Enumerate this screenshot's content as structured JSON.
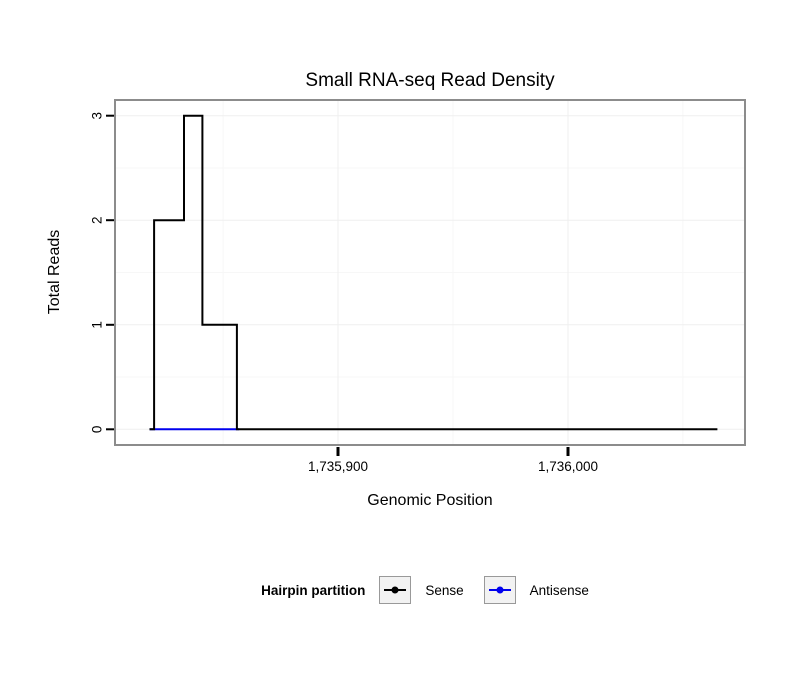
{
  "chart_data": {
    "type": "line",
    "title": "Small RNA-seq Read Density",
    "xlabel": "Genomic Position",
    "ylabel": "Total Reads",
    "legend_title": "Hairpin partition",
    "legend_position": "bottom",
    "grid": true,
    "xlim": [
      1735803,
      1736077
    ],
    "ylim": [
      -0.15,
      3.15
    ],
    "x_ticks": [
      {
        "value": 1735900,
        "label": "1,735,900"
      },
      {
        "value": 1736000,
        "label": "1,736,000"
      }
    ],
    "x_minor": [
      1735850,
      1735950,
      1736050
    ],
    "y_ticks": [
      0,
      1,
      2,
      3
    ],
    "y_minor": [
      0.5,
      1.5,
      2.5
    ],
    "series": [
      {
        "name": "Sense",
        "color": "#000000",
        "points": [
          [
            1735818,
            0
          ],
          [
            1735820,
            0
          ],
          [
            1735820,
            2
          ],
          [
            1735833,
            2
          ],
          [
            1735833,
            3
          ],
          [
            1735841,
            3
          ],
          [
            1735841,
            1
          ],
          [
            1735856,
            1
          ],
          [
            1735856,
            0
          ],
          [
            1736065,
            0
          ]
        ]
      },
      {
        "name": "Antisense",
        "color": "#0000ee",
        "points": [
          [
            1735818,
            0
          ],
          [
            1735857,
            0
          ]
        ]
      }
    ]
  },
  "colors": {
    "panel_border": "#8c8c8c",
    "grid_major": "#efefef",
    "grid_minor": "#f7f7f7",
    "axis_text": "#000000"
  }
}
